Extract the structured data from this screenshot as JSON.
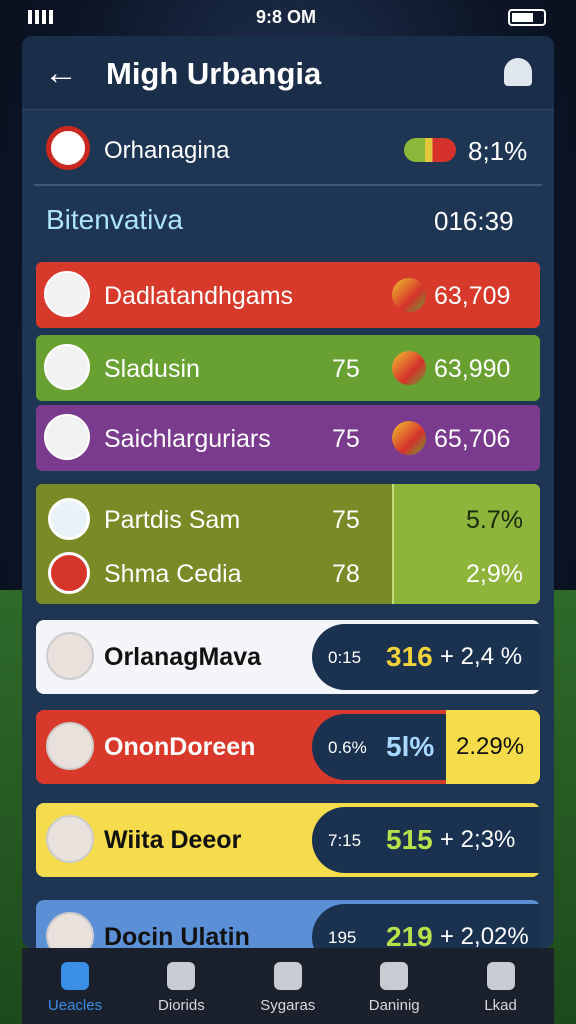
{
  "status": {
    "time": "9:8 OM"
  },
  "header": {
    "title": "Migh Urbangia"
  },
  "summary": {
    "label": "Orhanagina",
    "value": "8;1%"
  },
  "section": {
    "title": "Bitenvativa",
    "value": "016:39"
  },
  "rows": [
    {
      "name": "Dadlatandhgams",
      "value": "63,709"
    },
    {
      "name": "Sladusin",
      "score": "75",
      "value": "63,990"
    },
    {
      "name": "Saichlarguriars",
      "score": "75",
      "value": "65,706"
    }
  ],
  "pair": [
    {
      "name": "Partdis Sam",
      "score": "75",
      "value": "5.7%"
    },
    {
      "name": "Shma Cedia",
      "score": "78",
      "value": "2;9%"
    }
  ],
  "cards": [
    {
      "name": "OrlanagMava",
      "stat": "0:15",
      "score": "316",
      "change": "+ 2,4 %"
    },
    {
      "name": "OnonDoreen",
      "stat": "0.6%",
      "score": "5l%",
      "change": "2.29%"
    },
    {
      "name": "Wiita Deeor",
      "stat": "7:15",
      "score": "515",
      "change": "+ 2;3%"
    },
    {
      "name": "Docin Ulatin",
      "stat": "195",
      "score": "219",
      "change": "+ 2,02%"
    }
  ],
  "nav": [
    "Ueacles",
    "Diorids",
    "Sygaras",
    "Daninig",
    "Lkad"
  ]
}
